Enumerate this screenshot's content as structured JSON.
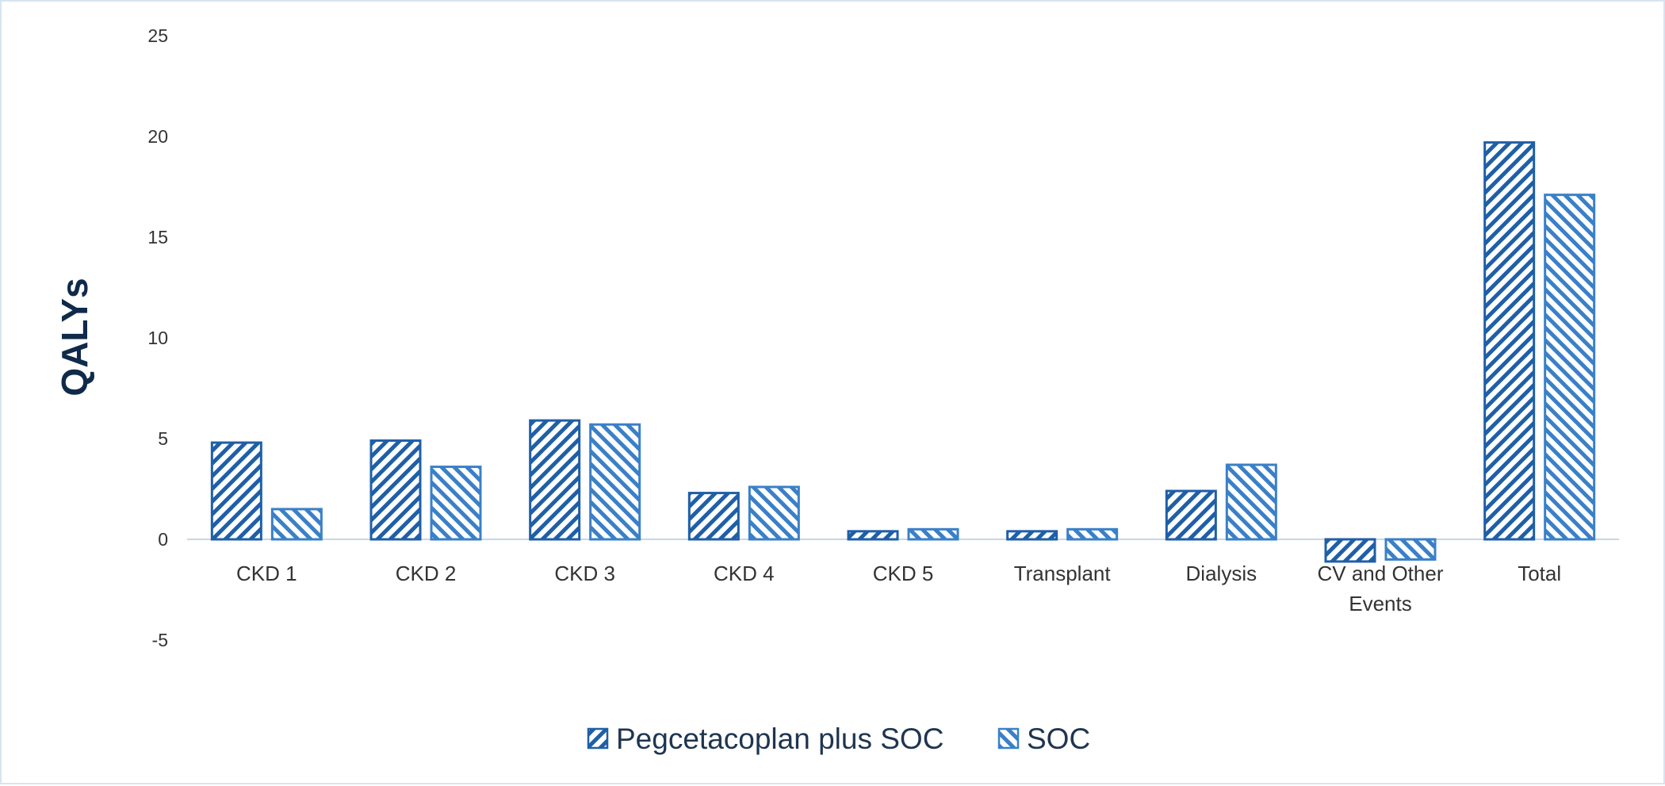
{
  "chart_data": {
    "type": "bar",
    "title": "",
    "xlabel": "",
    "ylabel": "QALYs",
    "ylim": [
      -5,
      25
    ],
    "yticks": [
      -5,
      0,
      5,
      10,
      15,
      20,
      25
    ],
    "grid": false,
    "legend_position": "bottom-center",
    "categories": [
      "CKD 1",
      "CKD 2",
      "CKD 3",
      "CKD 4",
      "CKD 5",
      "Transplant",
      "Dialysis",
      "CV and Other Events",
      "Total"
    ],
    "category_label_lines": [
      [
        "CKD 1"
      ],
      [
        "CKD 2"
      ],
      [
        "CKD 3"
      ],
      [
        "CKD 4"
      ],
      [
        "CKD 5"
      ],
      [
        "Transplant"
      ],
      [
        "Dialysis"
      ],
      [
        "CV and Other",
        "Events"
      ],
      [
        "Total"
      ]
    ],
    "series": [
      {
        "name": "Pegcetacoplan plus SOC",
        "color": "#1f5fa8",
        "pattern": "diagonal-up",
        "values": [
          4.8,
          4.9,
          5.9,
          2.3,
          0.4,
          0.4,
          2.4,
          -1.1,
          19.7
        ]
      },
      {
        "name": "SOC",
        "color": "#3a80c8",
        "pattern": "diagonal-down",
        "values": [
          1.5,
          3.6,
          5.7,
          2.6,
          0.5,
          0.5,
          3.7,
          -1.0,
          17.1
        ]
      }
    ]
  }
}
